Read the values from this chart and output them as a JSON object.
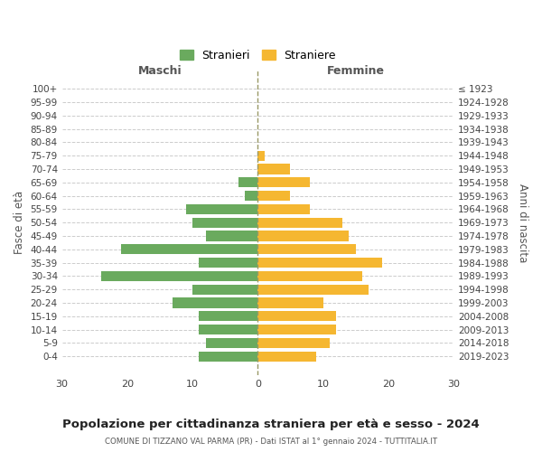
{
  "age_groups": [
    "100+",
    "95-99",
    "90-94",
    "85-89",
    "80-84",
    "75-79",
    "70-74",
    "65-69",
    "60-64",
    "55-59",
    "50-54",
    "45-49",
    "40-44",
    "35-39",
    "30-34",
    "25-29",
    "20-24",
    "15-19",
    "10-14",
    "5-9",
    "0-4"
  ],
  "birth_years": [
    "≤ 1923",
    "1924-1928",
    "1929-1933",
    "1934-1938",
    "1939-1943",
    "1944-1948",
    "1949-1953",
    "1954-1958",
    "1959-1963",
    "1964-1968",
    "1969-1973",
    "1974-1978",
    "1979-1983",
    "1984-1988",
    "1989-1993",
    "1994-1998",
    "1999-2003",
    "2004-2008",
    "2009-2013",
    "2014-2018",
    "2019-2023"
  ],
  "males": [
    0,
    0,
    0,
    0,
    0,
    0,
    0,
    3,
    2,
    11,
    10,
    8,
    21,
    9,
    24,
    10,
    13,
    9,
    9,
    8,
    9
  ],
  "females": [
    0,
    0,
    0,
    0,
    0,
    1,
    5,
    8,
    5,
    8,
    13,
    14,
    15,
    19,
    16,
    17,
    10,
    12,
    12,
    11,
    9
  ],
  "male_color": "#6aaa5e",
  "female_color": "#f5b731",
  "background_color": "#ffffff",
  "grid_color": "#cccccc",
  "title": "Popolazione per cittadinanza straniera per età e sesso - 2024",
  "subtitle": "COMUNE DI TIZZANO VAL PARMA (PR) - Dati ISTAT al 1° gennaio 2024 - TUTTITALIA.IT",
  "xlabel_left": "Maschi",
  "xlabel_right": "Femmine",
  "ylabel_left": "Fasce di età",
  "ylabel_right": "Anni di nascita",
  "legend_male": "Stranieri",
  "legend_female": "Straniere",
  "xlim": 30,
  "bar_height": 0.75
}
